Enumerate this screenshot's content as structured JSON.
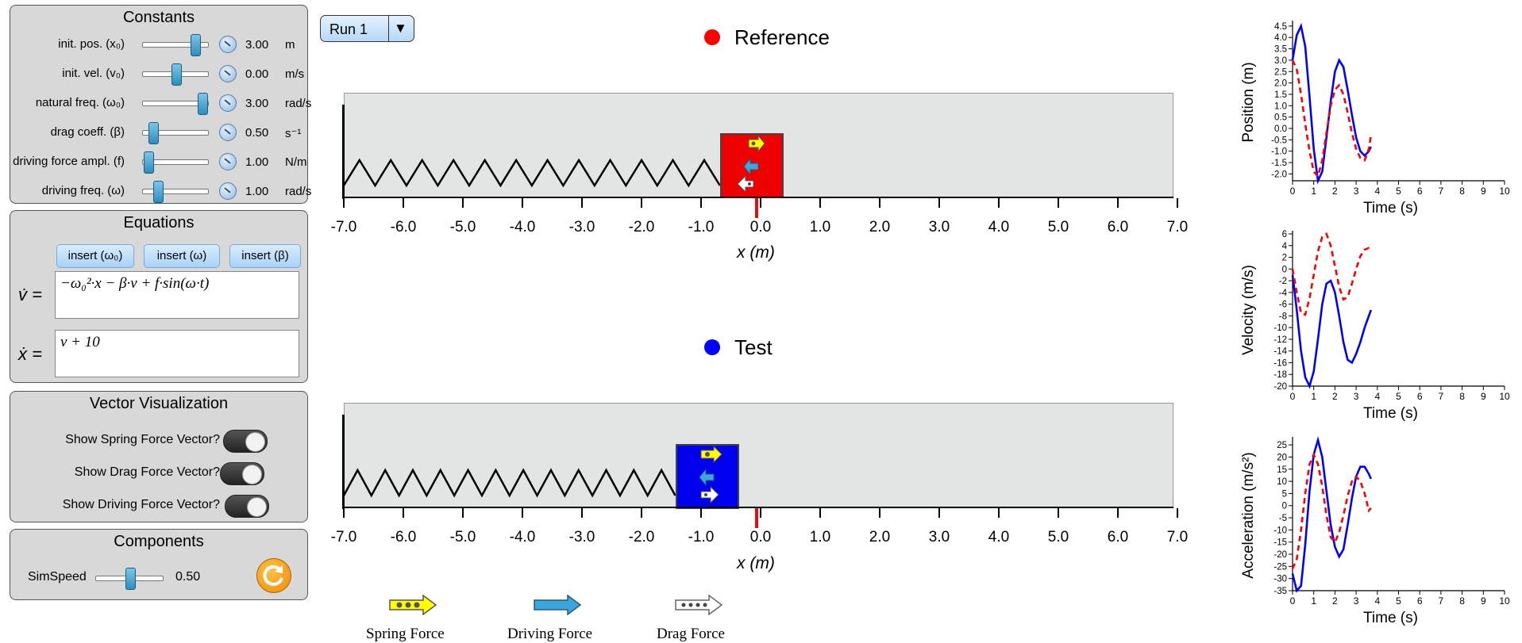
{
  "constants": {
    "title": "Constants",
    "rows": [
      {
        "label": "init. pos. (x₀)",
        "value": "3.00",
        "unit": "m"
      },
      {
        "label": "init. vel. (v₀)",
        "value": "0.00",
        "unit": "m/s"
      },
      {
        "label": "natural freq. (ω₀)",
        "value": "3.00",
        "unit": "rad/s"
      },
      {
        "label": "drag coeff. (β)",
        "value": "0.50",
        "unit": "s⁻¹"
      },
      {
        "label": "driving force ampl. (f)",
        "value": "1.00",
        "unit": "N/m"
      },
      {
        "label": "driving freq. (ω)",
        "value": "1.00",
        "unit": "rad/s"
      }
    ],
    "slider_levels": [
      0.85,
      0.5,
      0.97,
      0.1,
      0.02,
      0.18
    ]
  },
  "equations": {
    "title": "Equations",
    "insert_buttons": [
      "insert (ω₀)",
      "insert (ω)",
      "insert (β)"
    ],
    "vdot_label": "v̇ =",
    "vdot_expr": "−ω₀²·x − β·v + f·sin(ω·t)",
    "xdot_label": "ẋ =",
    "xdot_expr": "v + 10"
  },
  "vectors": {
    "title": "Vector Visualization",
    "toggles": [
      "Show Spring Force Vector?",
      "Show Drag Force Vector?",
      "Show Driving Force Vector?"
    ]
  },
  "components": {
    "title": "Components",
    "simspeed_label": "SimSpeed",
    "simspeed_value": "0.50",
    "simspeed_level": 0.5
  },
  "run_select": {
    "value": "Run 1",
    "arrow": "▼"
  },
  "reference": {
    "label": "Reference",
    "color": "#ff0000",
    "block_pos_m": -0.15
  },
  "test": {
    "label": "Test",
    "color": "#0000ff",
    "block_pos_m": -0.9
  },
  "axis": {
    "ticks": [
      "-7.0",
      "-6.0",
      "-5.0",
      "-4.0",
      "-3.0",
      "-2.0",
      "-1.0",
      "0.0",
      "1.0",
      "2.0",
      "3.0",
      "4.0",
      "5.0",
      "6.0",
      "7.0"
    ],
    "label": "x (m)"
  },
  "legend": {
    "spring": "Spring Force",
    "driving": "Driving Force",
    "drag": "Drag Force"
  },
  "chart_data": [
    {
      "type": "line",
      "ylabel": "Position (m)",
      "xlabel": "Time (s)",
      "xlim": [
        0,
        10
      ],
      "ylim": [
        -2.3,
        4.6
      ],
      "xticks": [
        "0",
        "1",
        "2",
        "3",
        "4",
        "5",
        "6",
        "7",
        "8",
        "9",
        "10"
      ],
      "yticks": [
        "4.5",
        "4.0",
        "3.5",
        "3.0",
        "2.5",
        "2.0",
        "1.5",
        "1.0",
        "0.5",
        "0.0",
        "-0.5",
        "-1.0",
        "-1.5",
        "-2.0"
      ],
      "series": [
        {
          "color": "#0000ff",
          "dash": false,
          "x": [
            0,
            0.2,
            0.4,
            0.6,
            0.8,
            1.0,
            1.2,
            1.4,
            1.6,
            1.8,
            2.0,
            2.2,
            2.4,
            2.6,
            2.8,
            3.0,
            3.2,
            3.4,
            3.6,
            3.7
          ],
          "y": [
            3.0,
            4.1,
            4.5,
            3.6,
            1.4,
            -0.9,
            -2.3,
            -1.9,
            -0.4,
            1.2,
            2.5,
            3.0,
            2.7,
            1.7,
            0.6,
            -0.4,
            -1.0,
            -1.2,
            -1.0,
            -0.8
          ]
        },
        {
          "color": "#ff0000",
          "dash": true,
          "x": [
            0,
            0.2,
            0.4,
            0.6,
            0.8,
            1.0,
            1.2,
            1.4,
            1.6,
            1.8,
            2.0,
            2.2,
            2.4,
            2.6,
            2.8,
            3.0,
            3.2,
            3.4,
            3.6,
            3.7
          ],
          "y": [
            3.0,
            2.6,
            1.5,
            0.2,
            -1.0,
            -1.9,
            -2.1,
            -1.4,
            -0.2,
            1.0,
            1.7,
            1.9,
            1.5,
            0.7,
            -0.2,
            -0.9,
            -1.3,
            -1.4,
            -0.9,
            -0.3
          ]
        }
      ]
    },
    {
      "type": "line",
      "ylabel": "Velocity (m/s)",
      "xlabel": "Time (s)",
      "xlim": [
        0,
        10
      ],
      "ylim": [
        -20,
        6
      ],
      "xticks": [
        "0",
        "1",
        "2",
        "3",
        "4",
        "5",
        "6",
        "7",
        "8",
        "9",
        "10"
      ],
      "yticks": [
        "6",
        "4",
        "2",
        "0",
        "-2",
        "-4",
        "-6",
        "-8",
        "-10",
        "-12",
        "-14",
        "-16",
        "-18",
        "-20"
      ],
      "series": [
        {
          "color": "#0000ff",
          "dash": false,
          "x": [
            0,
            0.2,
            0.4,
            0.6,
            0.8,
            1.0,
            1.2,
            1.4,
            1.6,
            1.8,
            2.0,
            2.2,
            2.4,
            2.6,
            2.8,
            3.0,
            3.2,
            3.4,
            3.6,
            3.7
          ],
          "y": [
            -1,
            -7,
            -14,
            -18.5,
            -20,
            -17.5,
            -12,
            -6,
            -2.5,
            -2,
            -4,
            -8,
            -12.5,
            -15.5,
            -16,
            -14.5,
            -12.5,
            -10,
            -8,
            -7
          ]
        },
        {
          "color": "#ff0000",
          "dash": true,
          "x": [
            0,
            0.2,
            0.4,
            0.6,
            0.8,
            1.0,
            1.2,
            1.4,
            1.6,
            1.8,
            2.0,
            2.2,
            2.4,
            2.6,
            2.8,
            3.0,
            3.2,
            3.4,
            3.6,
            3.7
          ],
          "y": [
            0,
            -4,
            -7.5,
            -7.8,
            -5,
            -1,
            3,
            5.5,
            6,
            4,
            0.5,
            -3,
            -5.2,
            -4.8,
            -2.5,
            0,
            2.2,
            3.3,
            3.6,
            3.5
          ]
        }
      ]
    },
    {
      "type": "line",
      "ylabel": "Acceleration (m/s²)",
      "xlabel": "Time (s)",
      "xlim": [
        0,
        10
      ],
      "ylim": [
        -35,
        27
      ],
      "xticks": [
        "0",
        "1",
        "2",
        "3",
        "4",
        "5",
        "6",
        "7",
        "8",
        "9",
        "10"
      ],
      "yticks": [
        "25",
        "20",
        "15",
        "10",
        "5",
        "0",
        "-5",
        "-10",
        "-15",
        "-20",
        "-25",
        "-30",
        "-35"
      ],
      "series": [
        {
          "color": "#0000ff",
          "dash": false,
          "x": [
            0,
            0.2,
            0.4,
            0.6,
            0.8,
            1.0,
            1.2,
            1.4,
            1.6,
            1.8,
            2.0,
            2.2,
            2.4,
            2.6,
            2.8,
            3.0,
            3.2,
            3.4,
            3.6,
            3.7
          ],
          "y": [
            -28,
            -35,
            -33,
            -16,
            6,
            21,
            27,
            20,
            6,
            -8,
            -17,
            -21,
            -18,
            -8,
            3,
            12,
            16,
            16,
            13,
            11
          ]
        },
        {
          "color": "#ff0000",
          "dash": true,
          "x": [
            0,
            0.2,
            0.4,
            0.6,
            0.8,
            1.0,
            1.2,
            1.4,
            1.6,
            1.8,
            2.0,
            2.2,
            2.4,
            2.6,
            2.8,
            3.0,
            3.2,
            3.4,
            3.6,
            3.7
          ],
          "y": [
            -26,
            -22,
            -10,
            5,
            17,
            21,
            17,
            8,
            -4,
            -13,
            -15,
            -11,
            -4,
            4,
            10,
            12,
            10,
            5,
            -2,
            -1
          ]
        }
      ]
    }
  ]
}
